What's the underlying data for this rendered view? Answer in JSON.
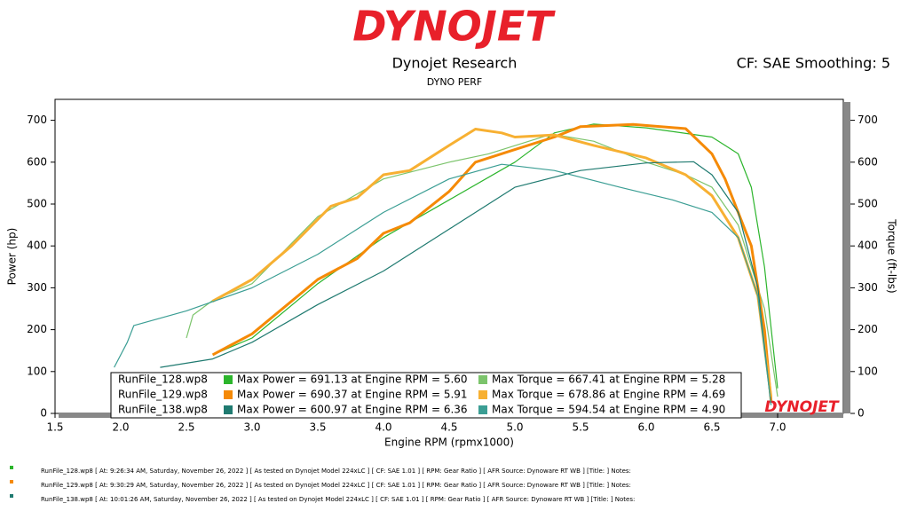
{
  "header": {
    "logo": "DYNOJET",
    "title": "Dynojet Research",
    "subtitle": "DYNO PERF",
    "settings": "CF: SAE Smoothing: 5"
  },
  "chart_data": {
    "type": "line",
    "x_label": "Engine RPM (rpmx1000)",
    "y_label": "Power (hp)",
    "y2_label": "Torque (ft-lbs)",
    "watermark": "DYNOJET",
    "xlim": [
      1.5,
      7.5
    ],
    "xticks": [
      1.5,
      {
        "value": 2,
        "label": "2.0"
      },
      2.5,
      {
        "value": 3,
        "label": "3.0"
      },
      3.5,
      {
        "value": 4,
        "label": "4.0"
      },
      4.5,
      {
        "value": 5,
        "label": "5.0"
      },
      5.5,
      {
        "value": 6,
        "label": "6.0"
      },
      6.5,
      {
        "value": 7,
        "label": "7.0"
      }
    ],
    "ylim": [
      0,
      750
    ],
    "yticks": [
      0,
      100,
      200,
      300,
      400,
      500,
      600,
      700
    ],
    "y2lim": [
      0,
      750
    ],
    "y2ticks": [
      0,
      100,
      200,
      300,
      400,
      500,
      600,
      700
    ],
    "series": [
      {
        "color": "#2cb52c",
        "x": [
          2.7,
          3.0,
          3.5,
          4.0,
          4.5,
          5.0,
          5.3,
          5.6,
          6.0,
          6.5,
          6.6,
          6.7,
          6.8,
          6.9,
          7.0
        ],
        "values": [
          140,
          180,
          310,
          420,
          510,
          600,
          670,
          691,
          682,
          660,
          640,
          620,
          540,
          350,
          60
        ]
      },
      {
        "color": "#7cc46c",
        "axis": "y2",
        "x": [
          2.5,
          2.55,
          2.7,
          3.0,
          3.5,
          4.0,
          4.5,
          4.8,
          5.28,
          5.6,
          6.0,
          6.3,
          6.5,
          6.7,
          6.9,
          7.0
        ],
        "values": [
          180,
          235,
          270,
          310,
          470,
          560,
          600,
          620,
          667,
          650,
          600,
          570,
          540,
          450,
          250,
          40
        ]
      },
      {
        "color": "#f58a07",
        "width": 3,
        "x": [
          2.7,
          3.0,
          3.5,
          3.8,
          4.0,
          4.2,
          4.5,
          4.7,
          5.0,
          5.3,
          5.5,
          5.9,
          6.3,
          6.5,
          6.6,
          6.8,
          6.9,
          6.95
        ],
        "values": [
          140,
          190,
          320,
          370,
          430,
          455,
          530,
          600,
          630,
          660,
          685,
          690,
          680,
          620,
          560,
          400,
          200,
          30
        ]
      },
      {
        "color": "#f7b032",
        "width": 3,
        "axis": "y2",
        "x": [
          2.7,
          3.0,
          3.3,
          3.6,
          3.8,
          4.0,
          4.2,
          4.5,
          4.7,
          4.9,
          5.0,
          5.3,
          5.6,
          6.0,
          6.3,
          6.5,
          6.7,
          6.85,
          6.95
        ],
        "values": [
          268,
          320,
          400,
          495,
          515,
          570,
          580,
          640,
          679,
          670,
          660,
          665,
          640,
          610,
          570,
          520,
          420,
          280,
          40
        ]
      },
      {
        "color": "#1f7a70",
        "x": [
          2.3,
          2.7,
          3.0,
          3.5,
          4.0,
          4.5,
          5.0,
          5.5,
          6.0,
          6.36,
          6.5,
          6.7,
          6.85,
          6.95
        ],
        "values": [
          110,
          130,
          170,
          260,
          340,
          440,
          540,
          580,
          598,
          601,
          570,
          480,
          300,
          20
        ]
      },
      {
        "color": "#3b9e94",
        "axis": "y2",
        "x": [
          1.95,
          2.05,
          2.1,
          2.5,
          3.0,
          3.5,
          4.0,
          4.5,
          4.9,
          5.3,
          5.8,
          6.2,
          6.5,
          6.7,
          6.85,
          6.95
        ],
        "values": [
          110,
          170,
          210,
          245,
          300,
          380,
          480,
          560,
          595,
          580,
          540,
          510,
          480,
          420,
          280,
          20
        ]
      }
    ],
    "legend_rows": [
      {
        "run": "RunFile_128.wp8",
        "power": "Max Power = 691.13 at Engine RPM = 5.60",
        "torque": "Max Torque = 667.41 at Engine RPM = 5.28"
      },
      {
        "run": "RunFile_129.wp8",
        "power": "Max Power = 690.37 at Engine RPM = 5.91",
        "torque": "Max Torque = 678.86 at Engine RPM = 4.69"
      },
      {
        "run": "RunFile_138.wp8",
        "power": "Max Power = 600.97 at Engine RPM = 6.36",
        "torque": "Max Torque = 594.54 at Engine RPM = 4.90"
      }
    ]
  },
  "footer": [
    "RunFile_128.wp8 [ At: 9:26:34 AM, Saturday, November 26, 2022 ] [ As tested on Dynojet Model 224xLC ] [ CF: SAE 1.01 ] [ RPM: Gear Ratio ] [ AFR Source: Dynoware RT WB ] [Title: ]   Notes:",
    "RunFile_129.wp8 [ At: 9:30:29 AM, Saturday, November 26, 2022 ] [ As tested on Dynojet Model 224xLC ] [ CF: SAE 1.01 ] [ RPM: Gear Ratio ] [ AFR Source: Dynoware RT WB ] [Title: ]   Notes:",
    "RunFile_138.wp8 [ At: 10:01:26 AM, Saturday, November 26, 2022 ] [ As tested on Dynojet Model 224xLC ] [ CF: SAE 1.01 ] [ RPM: Gear Ratio ] [ AFR Source: Dynoware RT WB ] [Title: ]   Notes:"
  ]
}
